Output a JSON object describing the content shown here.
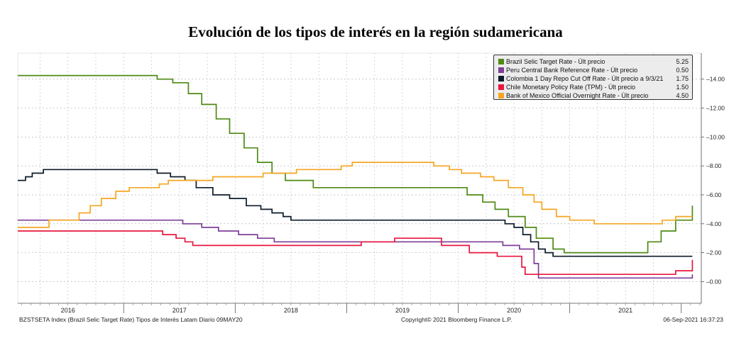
{
  "title": "Evolución de los tipos de interés en la región sudamericana",
  "footer": {
    "left": "BZSTSETA Index (Brazil Selic Target Rate) Tipos de Interés Latam  Diario 09MAY20",
    "middle": "Copyright© 2021 Bloomberg Finance L.P.",
    "right": "06-Sep-2021 16:37:23"
  },
  "chart_data": {
    "type": "line",
    "title": "Evolución de los tipos de interés en la región sudamericana",
    "xlim": [
      2015.55,
      2021.68
    ],
    "ylim": [
      -1.5,
      15.8
    ],
    "grid": true,
    "legend_position": "top-right",
    "x_year_labels": [
      {
        "label": "2016",
        "pos": 2016.0
      },
      {
        "label": "2017",
        "pos": 2017.0
      },
      {
        "label": "2018",
        "pos": 2018.0
      },
      {
        "label": "2019",
        "pos": 2019.0
      },
      {
        "label": "2020",
        "pos": 2020.0
      },
      {
        "label": "2021",
        "pos": 2021.0
      }
    ],
    "y_ticks": [
      0,
      2,
      4,
      6,
      8,
      10,
      12,
      14
    ],
    "y_tick_labels": [
      "0.00",
      "2.00",
      "4.00",
      "6.00",
      "8.00",
      "10.00",
      "12.00",
      "14.00"
    ],
    "series": [
      {
        "name": "Brazil Selic Target Rate - Últ precio",
        "last": "5.25",
        "color": "#4e8a14",
        "x": [
          2015.55,
          2016.8,
          2016.94,
          2017.08,
          2017.2,
          2017.33,
          2017.45,
          2017.58,
          2017.7,
          2017.83,
          2017.95,
          2018.2,
          2019.58,
          2019.72,
          2019.83,
          2019.95,
          2020.1,
          2020.2,
          2020.35,
          2020.45,
          2020.63,
          2021.2,
          2021.32,
          2021.45,
          2021.6
        ],
        "y": [
          14.25,
          14.0,
          13.75,
          13.0,
          12.25,
          11.25,
          10.25,
          9.25,
          8.25,
          7.5,
          7.0,
          6.5,
          6.0,
          5.5,
          5.0,
          4.5,
          3.75,
          3.0,
          2.25,
          2.0,
          2.0,
          2.75,
          3.5,
          4.25,
          5.25
        ]
      },
      {
        "name": "Peru Central Bank Reference Rate - Últ precio",
        "last": "0.50",
        "color": "#7d3f98",
        "x": [
          2015.55,
          2016.55,
          2017.03,
          2017.2,
          2017.35,
          2017.53,
          2017.7,
          2017.85,
          2018.05,
          2019.9,
          2020.05,
          2020.18,
          2020.22,
          2020.24,
          2021.55,
          2021.6
        ],
        "y": [
          4.25,
          4.25,
          4.0,
          3.75,
          3.5,
          3.25,
          3.0,
          2.75,
          2.75,
          2.5,
          2.25,
          1.25,
          0.25,
          0.25,
          0.25,
          0.5
        ]
      },
      {
        "name": "Colombia 1 Day Repo Cut Off Rate - Últ precio a 9/3/21",
        "last": "1.75",
        "color": "#0d1b2a",
        "x": [
          2015.55,
          2015.62,
          2015.68,
          2015.74,
          2015.78,
          2015.83,
          2015.88,
          2016.8,
          2016.92,
          2017.05,
          2017.15,
          2017.3,
          2017.45,
          2017.6,
          2017.73,
          2017.83,
          2017.93,
          2018.0,
          2019.82,
          2019.92,
          2020.0,
          2020.08,
          2020.15,
          2020.22,
          2020.28,
          2020.35,
          2021.6
        ],
        "y": [
          7.0,
          7.25,
          7.5,
          7.5,
          7.75,
          7.75,
          7.75,
          7.5,
          7.25,
          7.0,
          6.5,
          6.0,
          5.75,
          5.25,
          5.0,
          4.75,
          4.5,
          4.25,
          4.25,
          4.0,
          3.75,
          3.25,
          2.75,
          2.25,
          2.0,
          1.75,
          1.75
        ]
      },
      {
        "name": "Chile Monetary Policy Rate (TPM) - Últ precio",
        "last": "1.50",
        "color": "#e8173f",
        "x": [
          2015.55,
          2016.5,
          2016.85,
          2016.93,
          2016.97,
          2017.0,
          2017.05,
          2017.08,
          2017.12,
          2018.12,
          2018.3,
          2018.63,
          2018.93,
          2019.15,
          2019.35,
          2019.6,
          2019.85,
          2020.05,
          2020.07,
          2020.1,
          2021.33,
          2021.45,
          2021.55,
          2021.6
        ],
        "y": [
          3.5,
          3.5,
          3.25,
          3.25,
          3.0,
          3.0,
          2.75,
          2.75,
          2.5,
          2.5,
          2.5,
          2.75,
          3.0,
          3.0,
          2.5,
          2.0,
          1.75,
          1.75,
          1.0,
          0.5,
          0.5,
          0.75,
          0.75,
          1.5
        ]
      },
      {
        "name": "Bank of Mexico Official Overnight Rate - Últ precio",
        "last": "4.50",
        "color": "#f5a623",
        "x": [
          2015.55,
          2015.68,
          2015.83,
          2015.96,
          2016.1,
          2016.2,
          2016.3,
          2016.43,
          2016.55,
          2016.68,
          2016.82,
          2016.9,
          2017.0,
          2017.12,
          2017.3,
          2017.5,
          2017.75,
          2017.9,
          2018.05,
          2018.2,
          2018.45,
          2018.55,
          2019.1,
          2019.28,
          2019.42,
          2019.53,
          2019.7,
          2019.82,
          2019.95,
          2020.08,
          2020.18,
          2020.25,
          2020.38,
          2020.5,
          2020.72,
          2021.2,
          2021.33,
          2021.45,
          2021.6
        ],
        "y": [
          3.75,
          3.75,
          4.25,
          4.25,
          4.75,
          5.25,
          5.75,
          6.25,
          6.5,
          6.5,
          6.75,
          7.0,
          7.0,
          7.0,
          7.25,
          7.25,
          7.5,
          7.5,
          7.75,
          7.75,
          8.0,
          8.25,
          8.25,
          8.0,
          7.75,
          7.5,
          7.25,
          7.0,
          6.5,
          6.0,
          5.5,
          5.0,
          4.5,
          4.25,
          4.0,
          4.0,
          4.25,
          4.5,
          4.5
        ]
      }
    ]
  }
}
